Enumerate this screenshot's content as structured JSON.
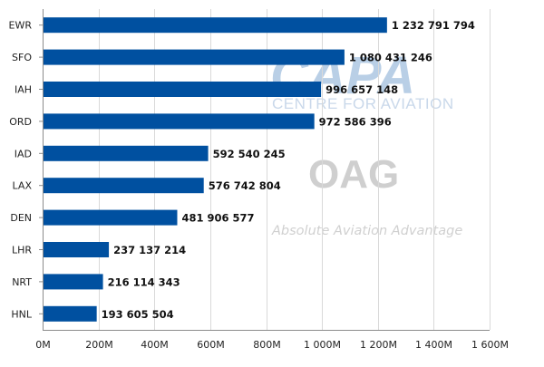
{
  "chart_data": {
    "type": "bar",
    "orientation": "horizontal",
    "title": "",
    "xlabel": "",
    "ylabel": "",
    "categories": [
      "EWR",
      "SFO",
      "IAH",
      "ORD",
      "IAD",
      "LAX",
      "DEN",
      "LHR",
      "NRT",
      "HNL"
    ],
    "values": [
      1232791794,
      1080431246,
      996657148,
      972586396,
      592540245,
      576742804,
      481906577,
      237137214,
      216114343,
      193605504
    ],
    "value_labels": [
      "1 232 791 794",
      "1 080 431 246",
      "996 657 148",
      "972 586 396",
      "592 540 245",
      "576 742 804",
      "481 906 577",
      "237 137 214",
      "216 114 343",
      "193 605 504"
    ],
    "xlim": [
      0,
      1600000000
    ],
    "x_ticks": [
      0,
      200000000,
      400000000,
      600000000,
      800000000,
      1000000000,
      1200000000,
      1400000000,
      1600000000
    ],
    "x_tick_labels": [
      "0M",
      "200M",
      "400M",
      "600M",
      "800M",
      "1 000M",
      "1 200M",
      "1 400M",
      "1 600M"
    ],
    "grid": true,
    "bar_color": "#0050a0"
  },
  "watermarks": {
    "capa_logo": "CAPA",
    "capa_subtitle": "CENTRE FOR AVIATION",
    "oag_logo": "OAG",
    "oag_tagline": "Absolute Aviation Advantage"
  }
}
